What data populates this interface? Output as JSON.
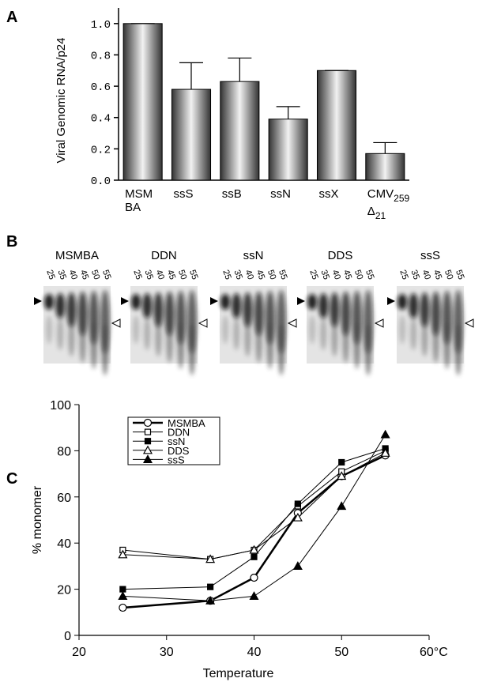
{
  "panel_labels": [
    "A",
    "B",
    "C"
  ],
  "chart_data": [
    {
      "type": "bar",
      "y_label": "Viral Genomic RNA/p24",
      "categories": [
        "MSM BA",
        "ssS",
        "ssB",
        "ssN",
        "ssX",
        "CMV259 Δ21"
      ],
      "values": [
        1.0,
        0.58,
        0.63,
        0.39,
        0.7,
        0.17
      ],
      "errors": [
        0,
        0.17,
        0.15,
        0.08,
        0,
        0.07
      ],
      "ylim": [
        0,
        1.1
      ],
      "yticks": [
        {
          "value": 0,
          "label": "0.0"
        },
        0.2,
        0.4,
        0.6,
        0.8,
        {
          "value": 1,
          "label": "1.0"
        }
      ]
    },
    {
      "type": "line",
      "x_label": "Temperature",
      "y_label": "% monomer",
      "x": [
        25,
        35,
        40,
        45,
        50,
        55
      ],
      "series": [
        {
          "name": "MSMBA",
          "marker": "circle-open",
          "line_width": 2.5,
          "values": [
            12,
            15,
            25,
            53,
            69,
            78
          ]
        },
        {
          "name": "DDN",
          "marker": "square-open",
          "line_width": 1,
          "values": [
            37,
            33,
            37,
            56,
            71,
            80
          ]
        },
        {
          "name": "ssN",
          "marker": "square-filled",
          "line_width": 1,
          "values": [
            20,
            21,
            34,
            57,
            75,
            81
          ]
        },
        {
          "name": "DDS",
          "marker": "triangle-open",
          "line_width": 1,
          "values": [
            35,
            33,
            37,
            51,
            69,
            79
          ]
        },
        {
          "name": "ssS",
          "marker": "triangle-filled",
          "line_width": 1,
          "values": [
            17,
            15,
            17,
            30,
            56,
            87
          ]
        }
      ],
      "xlim": [
        20,
        60
      ],
      "xticks": [
        20,
        30,
        40,
        50,
        {
          "value": 60,
          "label": "60°C"
        }
      ],
      "ylim": [
        0,
        100
      ],
      "yticks": [
        0,
        20,
        40,
        60,
        80,
        100
      ],
      "legend": "upper left"
    }
  ],
  "gel": {
    "samples": [
      {
        "name": "MSMBA",
        "lanes": [
          "25",
          "35",
          "40",
          "45",
          "50",
          "55"
        ]
      },
      {
        "name": "DDN",
        "lanes": [
          "25",
          "35",
          "40",
          "45",
          "50",
          "55"
        ]
      },
      {
        "name": "ssN",
        "lanes": [
          "25",
          "35",
          "40",
          "45",
          "50",
          "55"
        ]
      },
      {
        "name": "DDS",
        "lanes": [
          "25",
          "35",
          "40",
          "45",
          "50",
          "55"
        ]
      },
      {
        "name": "ssS",
        "lanes": [
          "25",
          "35",
          "40",
          "45",
          "50",
          "55"
        ]
      }
    ]
  }
}
